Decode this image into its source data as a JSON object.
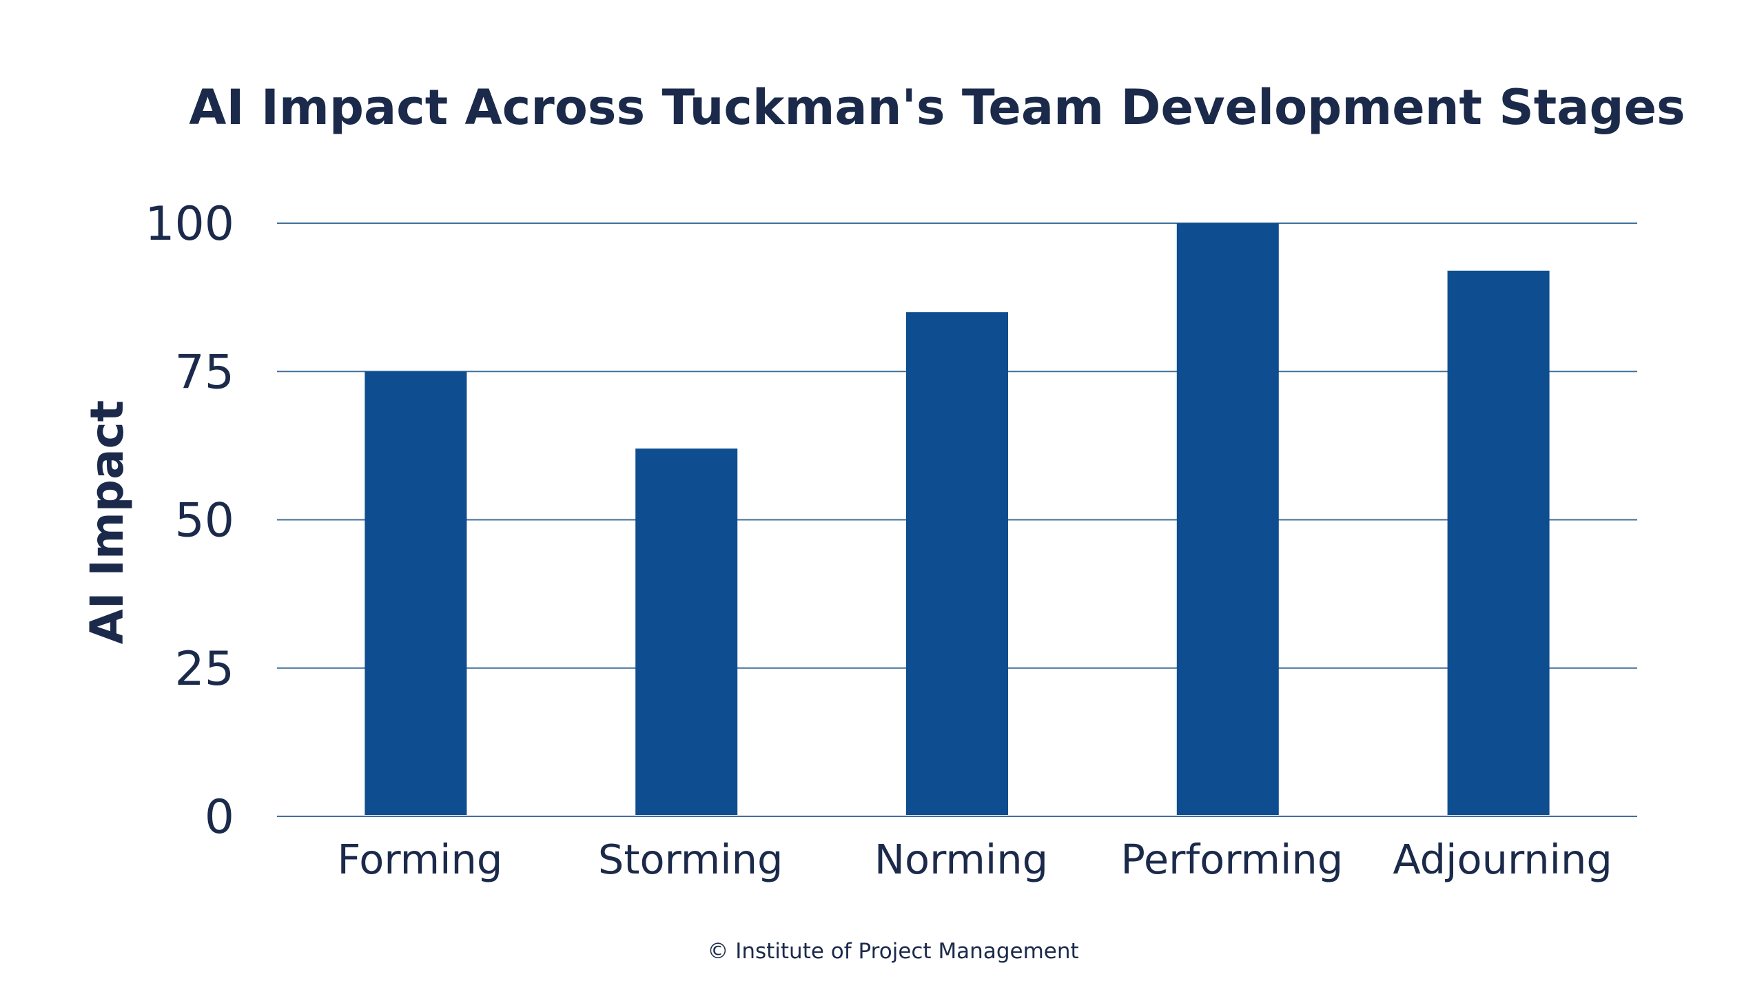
{
  "chart_data": {
    "type": "bar",
    "title": "AI Impact Across Tuckman's Team Development Stages",
    "xlabel": "",
    "ylabel": "AI Impact",
    "categories": [
      "Forming",
      "Storming",
      "Norming",
      "Performing",
      "Adjourning"
    ],
    "values": [
      75,
      62,
      85,
      100,
      92
    ],
    "ylim": [
      0,
      100
    ],
    "yticks": [
      "0",
      "25",
      "50",
      "75",
      "100"
    ],
    "grid": true,
    "colors": {
      "bar": "#0e4d8f",
      "grid": "#3f6f9a",
      "text": "#1b2a4a"
    }
  },
  "footer": {
    "credit": "© Institute of Project Management"
  }
}
